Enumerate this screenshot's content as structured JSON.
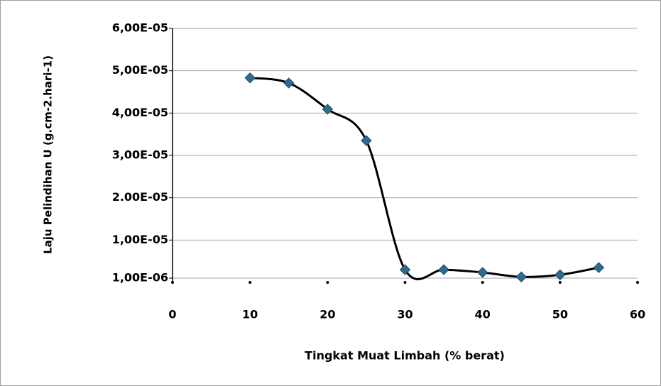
{
  "chart_data": {
    "type": "line",
    "x_label": "Tingkat Muat Limbah (% berat)",
    "y_label": "Laju Pelindihan U (g.cm-2.hari-1)",
    "x": [
      10,
      15,
      20,
      25,
      30,
      35,
      40,
      45,
      50,
      55
    ],
    "series": [
      {
        "name": "Laju Pelindihan U",
        "color": "#2f6b8c",
        "values": [
          4.83e-05,
          4.71e-05,
          4.09e-05,
          3.35e-05,
          3e-06,
          3e-06,
          2.35e-06,
          1.3e-06,
          1.8e-06,
          3.5e-06
        ]
      }
    ],
    "xlim": [
      0,
      60
    ],
    "xticks": [
      0,
      10,
      20,
      30,
      40,
      50,
      60
    ],
    "ylim": [
      0,
      6e-05
    ],
    "yticks": [
      {
        "value": 1e-06,
        "label": "1,00E-06"
      },
      {
        "value": 1e-05,
        "label": "1,00E-05"
      },
      {
        "value": 2e-05,
        "label": "2.00E-05"
      },
      {
        "value": 3e-05,
        "label": "3,00E-05"
      },
      {
        "value": 4e-05,
        "label": "4,00E-05"
      },
      {
        "value": 5e-05,
        "label": "5,00E-05"
      },
      {
        "value": 6e-05,
        "label": "6,00E-05"
      }
    ],
    "grid": true,
    "smooth": true
  }
}
